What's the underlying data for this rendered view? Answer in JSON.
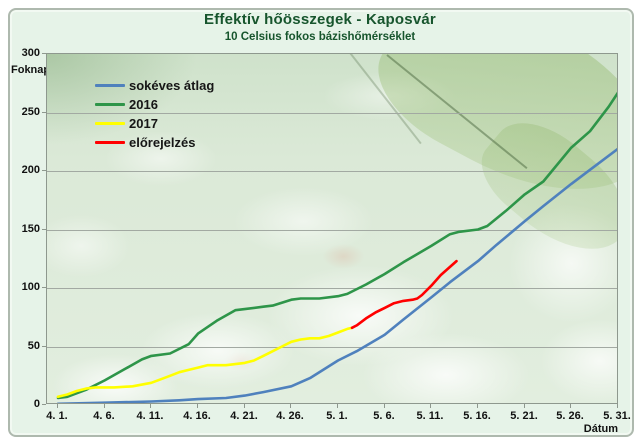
{
  "header": {
    "title": "Effektív hőösszegek - Kaposvár",
    "subtitle": "10 Celsius fokos bázishőmérséklet"
  },
  "colors": {
    "average": "#4f81bd",
    "y2016": "#2e9549",
    "y2017": "#ffff00",
    "forecast": "#ff0000",
    "title_green": "#17552d",
    "card_bg": "#e6f3e8",
    "gridline": "#a2a9a2"
  },
  "legend": [
    {
      "label": "sokéves átlag",
      "color": "#4f81bd"
    },
    {
      "label": "2016",
      "color": "#2e9549"
    },
    {
      "label": "2017",
      "color": "#ffff00"
    },
    {
      "label": "előrejelzés",
      "color": "#ff0000"
    }
  ],
  "y_axis": {
    "label": "Foknap",
    "tick_values": [
      300,
      250,
      200,
      150,
      100,
      50,
      0
    ]
  },
  "x_axis": {
    "label": "Dátum",
    "ticks": [
      "4. 1.",
      "4. 6.",
      "4. 11.",
      "4. 16.",
      "4. 21.",
      "4. 26.",
      "5. 1.",
      "5. 6.",
      "5. 11.",
      "5. 16.",
      "5. 21.",
      "5. 26.",
      "5. 31."
    ]
  },
  "chart_data": {
    "type": "line",
    "title": "Effektív hőösszegek - Kaposvár",
    "subtitle": "10 Celsius fokos bázishőmérséklet",
    "xlabel": "Dátum",
    "ylabel": "Foknap",
    "ylim": [
      0,
      300
    ],
    "grid": "horizontal, every 50",
    "legend_position": "inside top-left, no frame",
    "x_unit": "days after 4.1 (April 1); ticks every 5 days through 5.31",
    "x_day_range": [
      0,
      60
    ],
    "series": [
      {
        "name": "sokéves átlag",
        "color": "#4f81bd",
        "points": [
          [
            0,
            1
          ],
          [
            5,
            2
          ],
          [
            10,
            3
          ],
          [
            13,
            4
          ],
          [
            15,
            5
          ],
          [
            18,
            6
          ],
          [
            20,
            8
          ],
          [
            22,
            11
          ],
          [
            25,
            16
          ],
          [
            27,
            23
          ],
          [
            30,
            38
          ],
          [
            32,
            46
          ],
          [
            35,
            60
          ],
          [
            37,
            73
          ],
          [
            40,
            92
          ],
          [
            42,
            105
          ],
          [
            45,
            123
          ],
          [
            47,
            137
          ],
          [
            50,
            157
          ],
          [
            52,
            170
          ],
          [
            55,
            189
          ],
          [
            57,
            201
          ],
          [
            60,
            219
          ]
        ]
      },
      {
        "name": "2016",
        "color": "#2e9549",
        "points": [
          [
            0,
            6
          ],
          [
            1,
            7
          ],
          [
            3,
            13
          ],
          [
            5,
            21
          ],
          [
            7,
            30
          ],
          [
            9,
            39
          ],
          [
            10,
            42
          ],
          [
            12,
            44
          ],
          [
            14,
            52
          ],
          [
            15,
            61
          ],
          [
            17,
            72
          ],
          [
            19,
            81
          ],
          [
            20,
            82
          ],
          [
            22,
            84
          ],
          [
            23,
            85
          ],
          [
            25,
            90
          ],
          [
            26,
            91
          ],
          [
            28,
            91
          ],
          [
            30,
            93
          ],
          [
            31,
            95
          ],
          [
            33,
            103
          ],
          [
            35,
            112
          ],
          [
            37,
            122
          ],
          [
            40,
            136
          ],
          [
            42,
            146
          ],
          [
            43,
            148
          ],
          [
            45,
            150
          ],
          [
            46,
            153
          ],
          [
            48,
            166
          ],
          [
            50,
            180
          ],
          [
            52,
            191
          ],
          [
            55,
            220
          ],
          [
            57,
            234
          ],
          [
            59,
            255
          ],
          [
            60,
            267
          ]
        ]
      },
      {
        "name": "2017",
        "color": "#ffff00",
        "points": [
          [
            0,
            7
          ],
          [
            1,
            9
          ],
          [
            2,
            12
          ],
          [
            3,
            14
          ],
          [
            4,
            15
          ],
          [
            6,
            15
          ],
          [
            8,
            16
          ],
          [
            10,
            19
          ],
          [
            11,
            22
          ],
          [
            12,
            25
          ],
          [
            13,
            28
          ],
          [
            14,
            30
          ],
          [
            15,
            32
          ],
          [
            16,
            34
          ],
          [
            18,
            34
          ],
          [
            19,
            35
          ],
          [
            20,
            36
          ],
          [
            21,
            38
          ],
          [
            22,
            42
          ],
          [
            23,
            46
          ],
          [
            24,
            50
          ],
          [
            25,
            54
          ],
          [
            26,
            56
          ],
          [
            27,
            57
          ],
          [
            28,
            57
          ],
          [
            29,
            59
          ],
          [
            30,
            62
          ],
          [
            31,
            65
          ],
          [
            31.5,
            66
          ]
        ]
      },
      {
        "name": "előrejelzés",
        "color": "#ff0000",
        "points": [
          [
            31.5,
            66
          ],
          [
            32,
            68
          ],
          [
            33,
            74
          ],
          [
            34,
            79
          ],
          [
            35,
            83
          ],
          [
            36,
            87
          ],
          [
            37,
            89
          ],
          [
            38,
            90
          ],
          [
            38.5,
            91
          ],
          [
            39,
            94
          ],
          [
            40,
            102
          ],
          [
            41,
            111
          ],
          [
            42,
            118
          ],
          [
            42.7,
            123
          ]
        ]
      }
    ]
  }
}
